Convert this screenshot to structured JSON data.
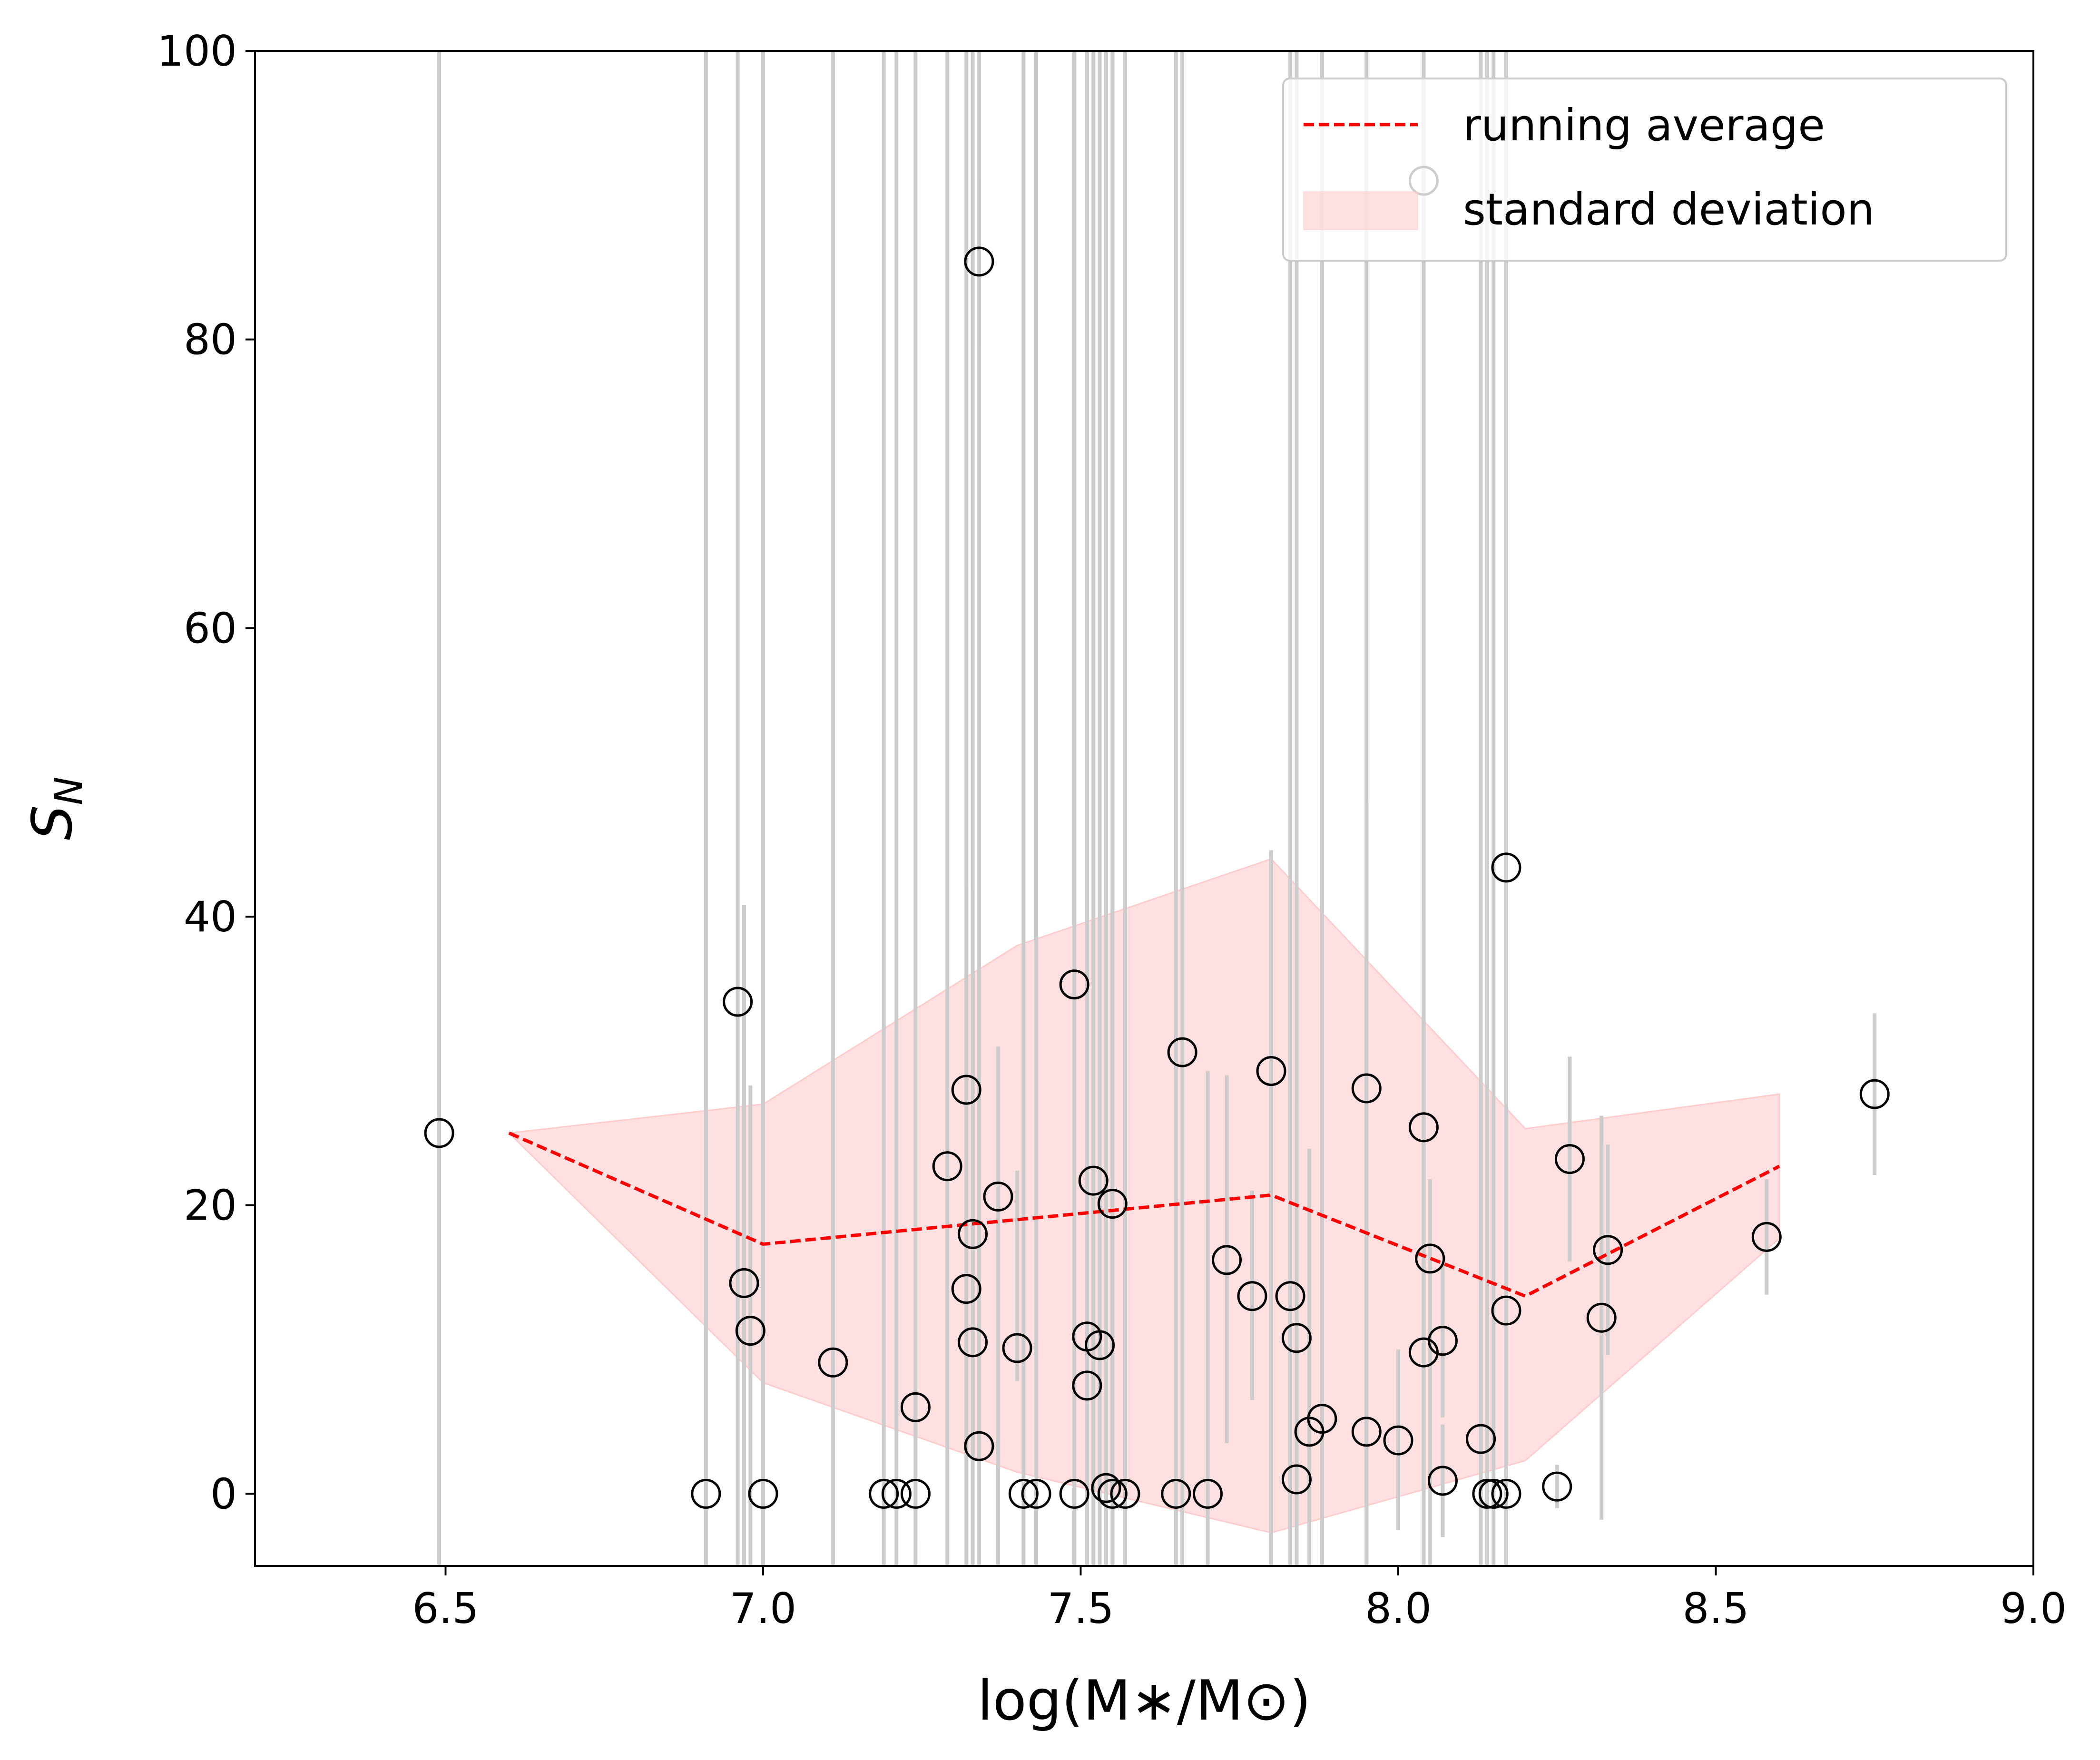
{
  "chart_data": {
    "type": "scatter",
    "xlabel": "log(M∗/M⊙)",
    "ylabel": "S",
    "ylabel_sub": "N",
    "xlim": [
      6.2,
      9.0
    ],
    "ylim": [
      -5,
      100
    ],
    "xticks": [
      6.5,
      7.0,
      7.5,
      8.0,
      8.5,
      9.0
    ],
    "xtick_labels": [
      "6.5",
      "7.0",
      "7.5",
      "8.0",
      "8.5",
      "9.0"
    ],
    "yticks": [
      0,
      20,
      40,
      60,
      80,
      100
    ],
    "ytick_labels": [
      "0",
      "20",
      "40",
      "60",
      "80",
      "100"
    ],
    "grid": false,
    "legend": {
      "position": "top-right",
      "entries": [
        {
          "label": "running average",
          "style": "dashed-line",
          "color": "#ff0000"
        },
        {
          "label": "standard deviation",
          "style": "filled-patch",
          "color": "#ffcccc"
        }
      ]
    },
    "colors": {
      "running_average": "#ff0000",
      "std_fill": "#ffcccc",
      "errorbar": "#cccccc",
      "marker_edge": "#000000"
    },
    "running_average": {
      "x": [
        6.6,
        7.0,
        7.8,
        8.2,
        8.6
      ],
      "y": [
        25.0,
        17.3,
        20.7,
        13.7,
        22.7
      ]
    },
    "std_band": {
      "x": [
        6.6,
        7.0,
        7.4,
        7.8,
        8.2,
        8.6
      ],
      "upper": [
        25.0,
        27.0,
        38.0,
        44.0,
        25.3,
        27.7
      ],
      "lower": [
        25.0,
        7.7,
        1.5,
        -2.7,
        2.3,
        17.7
      ]
    },
    "points": [
      {
        "x": 6.49,
        "y": 25.0,
        "lo": -5,
        "hi": 100
      },
      {
        "x": 6.91,
        "y": 0.0,
        "lo": -5,
        "hi": 100
      },
      {
        "x": 6.96,
        "y": 34.1,
        "lo": -5,
        "hi": 100
      },
      {
        "x": 6.97,
        "y": 14.6,
        "lo": -5,
        "hi": 40.8
      },
      {
        "x": 6.98,
        "y": 11.3,
        "lo": -5,
        "hi": 28.3
      },
      {
        "x": 7.0,
        "y": 0.0,
        "lo": -5,
        "hi": 100
      },
      {
        "x": 7.11,
        "y": 9.1,
        "lo": -5,
        "hi": 100
      },
      {
        "x": 7.19,
        "y": 0.0,
        "lo": -5,
        "hi": 100
      },
      {
        "x": 7.21,
        "y": 0.0,
        "lo": -5,
        "hi": 100
      },
      {
        "x": 7.24,
        "y": 0.0,
        "lo": -3.2,
        "hi": 6.8
      },
      {
        "x": 7.24,
        "y": 6.0,
        "lo": -5,
        "hi": 100
      },
      {
        "x": 7.29,
        "y": 22.7,
        "lo": -5,
        "hi": 100
      },
      {
        "x": 7.32,
        "y": 28.0,
        "lo": -5,
        "hi": 42.1
      },
      {
        "x": 7.32,
        "y": 14.2,
        "lo": -5,
        "hi": 100
      },
      {
        "x": 7.33,
        "y": 18.0,
        "lo": -5,
        "hi": 41.8
      },
      {
        "x": 7.33,
        "y": 10.5,
        "lo": -5,
        "hi": 100
      },
      {
        "x": 7.34,
        "y": 85.4,
        "lo": 79.5,
        "hi": 91.2
      },
      {
        "x": 7.34,
        "y": 3.3,
        "lo": -5,
        "hi": 100
      },
      {
        "x": 7.37,
        "y": 20.6,
        "lo": -5,
        "hi": 31.0
      },
      {
        "x": 7.4,
        "y": 10.1,
        "lo": 7.8,
        "hi": 22.4
      },
      {
        "x": 7.41,
        "y": 0.0,
        "lo": -5,
        "hi": 100
      },
      {
        "x": 7.43,
        "y": 0.0,
        "lo": -5,
        "hi": 100
      },
      {
        "x": 7.49,
        "y": 35.3,
        "lo": -5,
        "hi": 100
      },
      {
        "x": 7.49,
        "y": 0.0,
        "lo": -5,
        "hi": 100
      },
      {
        "x": 7.51,
        "y": 10.9,
        "lo": -5,
        "hi": 100
      },
      {
        "x": 7.51,
        "y": 7.5,
        "lo": -5,
        "hi": 100
      },
      {
        "x": 7.52,
        "y": 21.7,
        "lo": -5,
        "hi": 100
      },
      {
        "x": 7.53,
        "y": 10.3,
        "lo": -5,
        "hi": 100
      },
      {
        "x": 7.54,
        "y": 0.4,
        "lo": -5,
        "hi": 100
      },
      {
        "x": 7.55,
        "y": 20.1,
        "lo": -5,
        "hi": 100
      },
      {
        "x": 7.55,
        "y": 0.0,
        "lo": -5,
        "hi": 100
      },
      {
        "x": 7.57,
        "y": 0.0,
        "lo": -5,
        "hi": 100
      },
      {
        "x": 7.65,
        "y": 0.0,
        "lo": -5,
        "hi": 100
      },
      {
        "x": 7.66,
        "y": 30.6,
        "lo": -5,
        "hi": 100
      },
      {
        "x": 7.7,
        "y": 0.0,
        "lo": -5,
        "hi": 29.3
      },
      {
        "x": 7.73,
        "y": 16.2,
        "lo": 3.5,
        "hi": 29.0
      },
      {
        "x": 7.77,
        "y": 13.7,
        "lo": 6.5,
        "hi": 21.0
      },
      {
        "x": 7.8,
        "y": 29.3,
        "lo": -5,
        "hi": 44.6
      },
      {
        "x": 7.83,
        "y": 13.7,
        "lo": -5,
        "hi": 100
      },
      {
        "x": 7.84,
        "y": 10.8,
        "lo": -5,
        "hi": 27.0
      },
      {
        "x": 7.84,
        "y": 1.0,
        "lo": -5,
        "hi": 100
      },
      {
        "x": 7.86,
        "y": 4.3,
        "lo": -5,
        "hi": 23.9
      },
      {
        "x": 7.88,
        "y": 5.2,
        "lo": -5,
        "hi": 100
      },
      {
        "x": 7.95,
        "y": 28.1,
        "lo": -5,
        "hi": 47.9
      },
      {
        "x": 7.95,
        "y": 4.3,
        "lo": -5,
        "hi": 100
      },
      {
        "x": 8.0,
        "y": 3.7,
        "lo": -2.5,
        "hi": 10.0
      },
      {
        "x": 8.04,
        "y": 25.4,
        "lo": -5,
        "hi": 100
      },
      {
        "x": 8.04,
        "y": 9.8,
        "lo": -5,
        "hi": 39.9
      },
      {
        "x": 8.04,
        "y": 91.0,
        "lo": -5,
        "hi": 100
      },
      {
        "x": 8.05,
        "y": 16.3,
        "lo": -5,
        "hi": 21.8
      },
      {
        "x": 8.07,
        "y": 10.6,
        "lo": 5.3,
        "hi": 15.9
      },
      {
        "x": 8.07,
        "y": 0.9,
        "lo": -3.0,
        "hi": 4.8
      },
      {
        "x": 8.13,
        "y": 3.8,
        "lo": -5,
        "hi": 100
      },
      {
        "x": 8.14,
        "y": 0.0,
        "lo": -5,
        "hi": 100
      },
      {
        "x": 8.15,
        "y": 0.0,
        "lo": -5,
        "hi": 100
      },
      {
        "x": 8.17,
        "y": 43.4,
        "lo": -5,
        "hi": 100
      },
      {
        "x": 8.17,
        "y": 12.7,
        "lo": -5,
        "hi": 100
      },
      {
        "x": 8.17,
        "y": 0.0,
        "lo": -5,
        "hi": 100
      },
      {
        "x": 8.25,
        "y": 0.5,
        "lo": -1.0,
        "hi": 2.0
      },
      {
        "x": 8.27,
        "y": 23.2,
        "lo": 16.1,
        "hi": 30.3
      },
      {
        "x": 8.32,
        "y": 12.2,
        "lo": -1.8,
        "hi": 26.2
      },
      {
        "x": 8.33,
        "y": 16.9,
        "lo": 9.6,
        "hi": 24.2
      },
      {
        "x": 8.58,
        "y": 17.8,
        "lo": 13.8,
        "hi": 21.8
      },
      {
        "x": 8.75,
        "y": 27.7,
        "lo": 22.1,
        "hi": 33.3
      }
    ]
  }
}
